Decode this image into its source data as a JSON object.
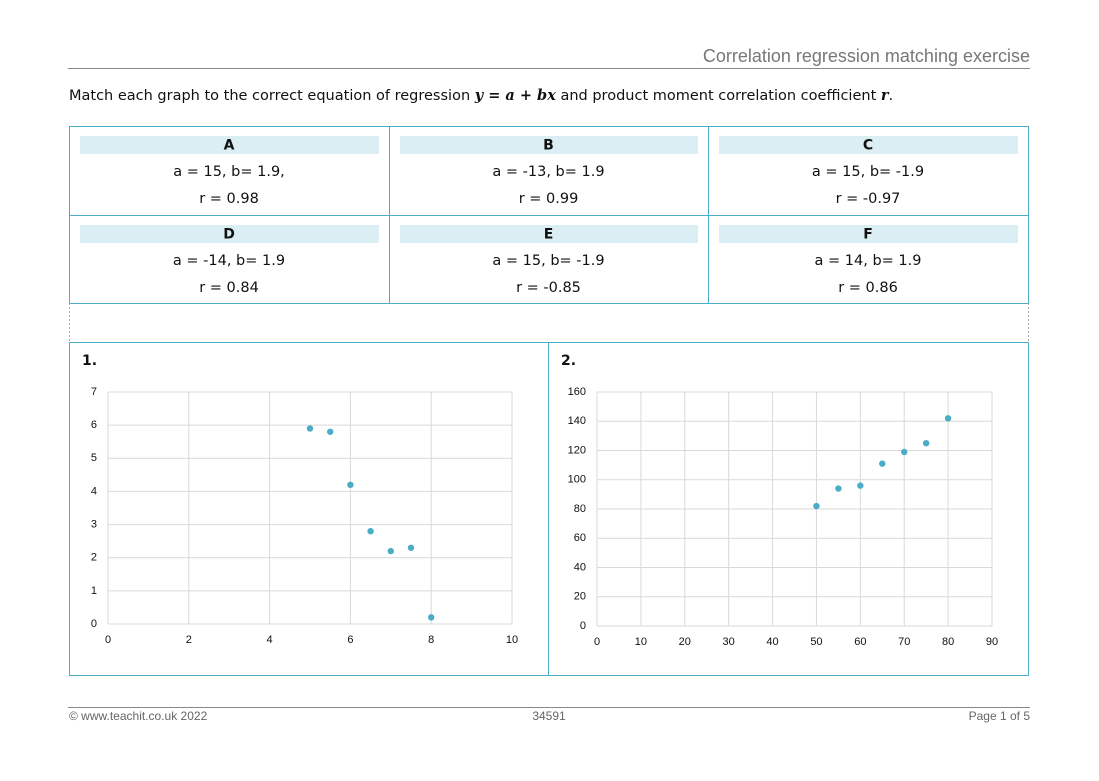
{
  "header": {
    "title": "Correlation regression matching exercise"
  },
  "instruction": [
    "Match each graph to the correct equation of regression ",
    "y = a + bx",
    " and product moment correlation coefficient ",
    "r",
    "."
  ],
  "cards": [
    {
      "letter": "A",
      "lines": [
        "a = 15, b= 1.9,",
        "r = 0.98"
      ]
    },
    {
      "letter": "B",
      "lines": [
        "a = -13, b= 1.9",
        "r = 0.99"
      ]
    },
    {
      "letter": "C",
      "lines": [
        "a = 15, b= -1.9",
        "r = -0.97"
      ]
    },
    {
      "letter": "D",
      "lines": [
        "a = -14, b= 1.9",
        "r = 0.84"
      ]
    },
    {
      "letter": "E",
      "lines": [
        "a = 15, b= -1.9",
        "r = -0.85"
      ]
    },
    {
      "letter": "F",
      "lines": [
        "a = 14, b= 1.9",
        "r = 0.86"
      ]
    }
  ],
  "chart_data": [
    {
      "type": "scatter",
      "title": "1.",
      "x": [
        5,
        5.5,
        6,
        6.5,
        7,
        7.5,
        8
      ],
      "values": [
        5.9,
        5.8,
        4.2,
        2.8,
        2.2,
        2.3,
        0.2
      ],
      "color": "#4bacc6",
      "xlim": [
        0,
        10
      ],
      "xticks": [
        0,
        2,
        4,
        6,
        8,
        10
      ],
      "ylim": [
        0,
        7
      ],
      "yticks": [
        0,
        1,
        2,
        3,
        4,
        5,
        6,
        7
      ],
      "grid": true
    },
    {
      "type": "scatter",
      "title": "2.",
      "x": [
        50,
        55,
        60,
        65,
        70,
        75,
        80
      ],
      "values": [
        82,
        94,
        96,
        111,
        119,
        125,
        142
      ],
      "color": "#4bacc6",
      "xlim": [
        0,
        90
      ],
      "xticks": [
        0,
        10,
        20,
        30,
        40,
        50,
        60,
        70,
        80,
        90
      ],
      "ylim": [
        0,
        160
      ],
      "yticks": [
        0,
        20,
        40,
        60,
        80,
        100,
        120,
        140,
        160
      ],
      "grid": true
    }
  ],
  "footer": {
    "left": "© www.teachit.co.uk 2022",
    "center": "34591",
    "right": "Page 1 of 5"
  }
}
